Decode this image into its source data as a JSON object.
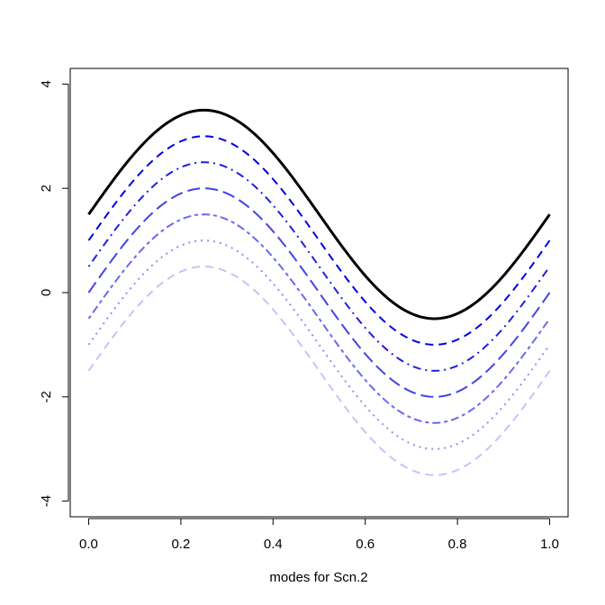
{
  "chart_data": {
    "type": "line",
    "title": "",
    "xlabel": "modes for Scn.2",
    "ylabel": "",
    "xlim": [
      -0.04,
      1.04
    ],
    "ylim": [
      -4.3,
      4.3
    ],
    "x_ticks": [
      0.0,
      0.2,
      0.4,
      0.6,
      0.8,
      1.0
    ],
    "x_tick_labels": [
      "0.0",
      "0.2",
      "0.4",
      "0.6",
      "0.8",
      "1.0"
    ],
    "y_ticks": [
      -4,
      -2,
      0,
      2,
      4
    ],
    "y_tick_labels": [
      "-4",
      "-2",
      "0",
      "2",
      "4"
    ],
    "grid": false,
    "legend": "none",
    "function": "y = 2*sin(2*pi*x) + offset",
    "series": [
      {
        "offset": 1.5,
        "color": "#000000",
        "dash": "solid",
        "width": 3
      },
      {
        "offset": 1.0,
        "color": "#0000E6",
        "dash": "dashed",
        "width": 2
      },
      {
        "offset": 0.5,
        "color": "#1F1FE0",
        "dash": "dotdash",
        "width": 2
      },
      {
        "offset": 0.0,
        "color": "#4444E6",
        "dash": "longdash",
        "width": 2
      },
      {
        "offset": -0.5,
        "color": "#6A6AEB",
        "dash": "twodash",
        "width": 2
      },
      {
        "offset": -1.0,
        "color": "#9090F0",
        "dash": "dotted",
        "width": 2
      },
      {
        "offset": -1.5,
        "color": "#C4C4F8",
        "dash": "dashed",
        "width": 2
      }
    ],
    "x_samples": [
      0.0,
      0.05,
      0.1,
      0.15,
      0.2,
      0.25,
      0.3,
      0.35,
      0.4,
      0.45,
      0.5,
      0.55,
      0.6,
      0.65,
      0.7,
      0.75,
      0.8,
      0.85,
      0.9,
      0.95,
      1.0
    ]
  }
}
